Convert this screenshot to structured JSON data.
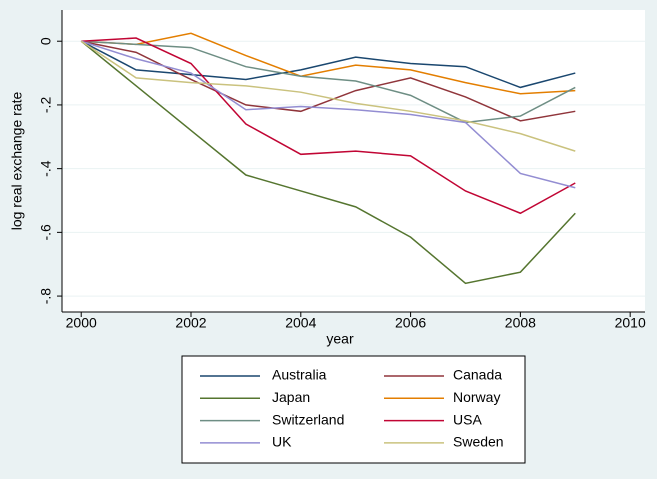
{
  "chart_data": {
    "type": "line",
    "x_label": "year",
    "y_label": "log real exchange rate",
    "x": [
      2000,
      2001,
      2002,
      2003,
      2004,
      2005,
      2006,
      2007,
      2008,
      2009
    ],
    "xlim": [
      1999.65,
      2010.27
    ],
    "xticks": [
      2000,
      2002,
      2004,
      2006,
      2008,
      2010
    ],
    "ylim": [
      -0.85,
      0.098
    ],
    "yticks": [
      0,
      {
        "value": -0.2,
        "label": "-.2"
      },
      {
        "value": -0.4,
        "label": "-.4"
      },
      {
        "value": -0.6,
        "label": "-.6"
      },
      {
        "value": -0.8,
        "label": "-.8"
      }
    ],
    "grid": true,
    "series": [
      {
        "name": "Australia",
        "color": "#1a476f",
        "values": [
          0,
          -0.09,
          -0.105,
          -0.12,
          -0.09,
          -0.05,
          -0.07,
          -0.08,
          -0.145,
          -0.1
        ]
      },
      {
        "name": "Canada",
        "color": "#90353b",
        "values": [
          0,
          -0.035,
          -0.12,
          -0.2,
          -0.22,
          -0.155,
          -0.115,
          -0.175,
          -0.25,
          -0.22
        ]
      },
      {
        "name": "Japan",
        "color": "#55752f",
        "values": [
          0,
          -0.14,
          -0.28,
          -0.42,
          -0.47,
          -0.52,
          -0.615,
          -0.76,
          -0.725,
          -0.54
        ]
      },
      {
        "name": "Norway",
        "color": "#e37e00",
        "values": [
          0,
          -0.01,
          0.025,
          -0.045,
          -0.11,
          -0.075,
          -0.09,
          -0.13,
          -0.165,
          -0.155
        ]
      },
      {
        "name": "Switzerland",
        "color": "#6e8e84",
        "values": [
          0,
          -0.01,
          -0.02,
          -0.08,
          -0.11,
          -0.125,
          -0.17,
          -0.255,
          -0.235,
          -0.145
        ]
      },
      {
        "name": "USA",
        "color": "#c10534",
        "values": [
          0,
          0.01,
          -0.07,
          -0.26,
          -0.355,
          -0.345,
          -0.36,
          -0.47,
          -0.54,
          -0.445
        ]
      },
      {
        "name": "UK",
        "color": "#938dd2",
        "values": [
          0,
          -0.055,
          -0.1,
          -0.215,
          -0.205,
          -0.215,
          -0.23,
          -0.255,
          -0.415,
          -0.46
        ]
      },
      {
        "name": "Sweden",
        "color": "#cac27e",
        "values": [
          0,
          -0.115,
          -0.13,
          -0.14,
          -0.16,
          -0.195,
          -0.22,
          -0.25,
          -0.29,
          -0.345
        ]
      }
    ]
  }
}
